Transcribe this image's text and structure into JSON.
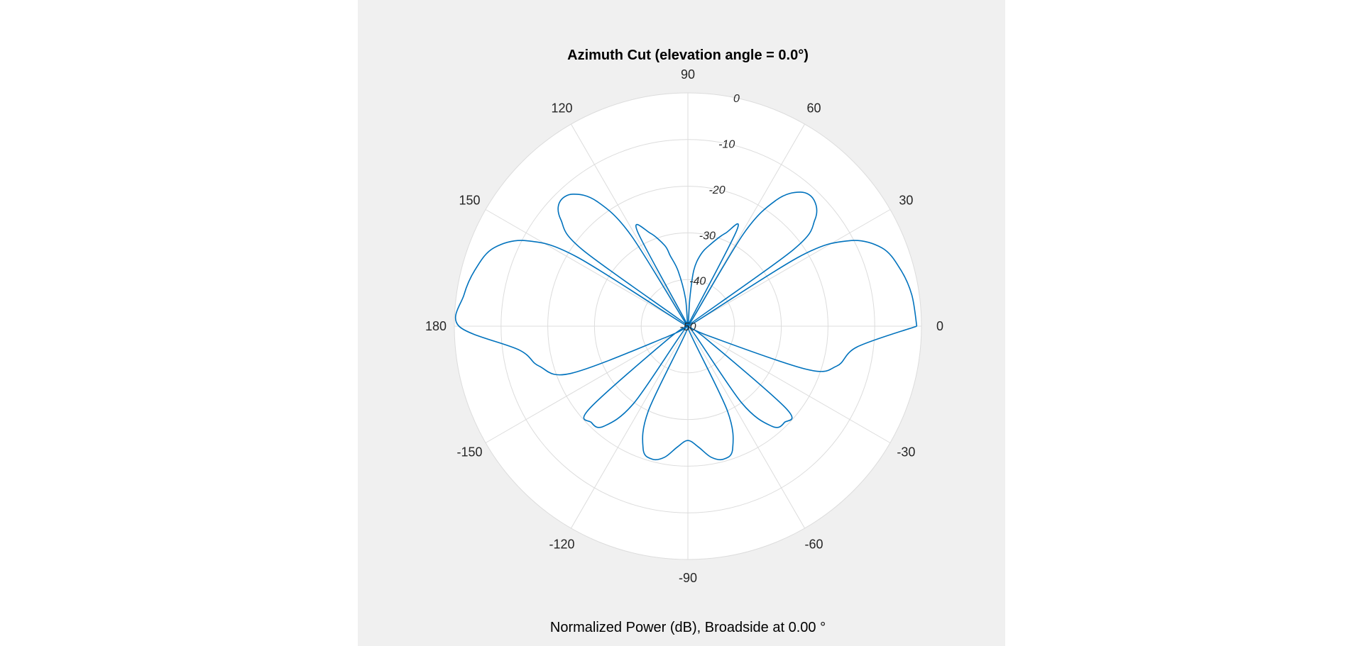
{
  "chart_data": {
    "type": "polar-line",
    "title": "Azimuth Cut (elevation angle = 0.0°)",
    "xlabel": "Normalized Power (dB), Broadside at 0.00 °",
    "theta_ticks": [
      0,
      30,
      60,
      90,
      120,
      150,
      180,
      -150,
      -120,
      -90,
      -60,
      -30
    ],
    "r_ticks": [
      0,
      -10,
      -20,
      -30,
      -40,
      -50
    ],
    "rlim": [
      -50,
      0
    ],
    "grid": true,
    "colors": {
      "line": "#0072bd",
      "grid": "#dcdcdc",
      "background": "#ffffff",
      "figure": "#f0f0f0"
    },
    "series": [
      {
        "theta_deg": [
          0,
          8,
          15,
          22,
          28,
          32,
          34,
          36,
          40,
          45,
          50,
          55,
          59,
          61,
          63,
          68,
          75,
          80,
          84,
          86,
          90,
          95,
          100,
          104,
          106,
          112,
          118,
          120,
          122,
          126,
          131,
          136,
          140,
          144,
          146,
          148,
          152,
          158,
          165,
          172,
          180,
          188,
          195,
          202,
          207,
          210,
          213,
          220,
          225,
          230,
          235,
          240,
          245,
          250,
          255,
          260,
          265,
          270,
          275,
          280,
          285,
          290,
          295,
          300,
          305,
          310,
          315,
          320,
          325,
          330,
          335,
          340,
          345,
          353,
          360
        ],
        "r_db": [
          -1.0,
          -1.6,
          -2.9,
          -5.2,
          -11.0,
          -22.0,
          -50.0,
          -22.0,
          -14.5,
          -11.8,
          -12.5,
          -17.0,
          -27.0,
          -50.0,
          -27.0,
          -28.5,
          -32.0,
          -34.5,
          -38.0,
          -44.0,
          -50.0,
          -44.0,
          -38.0,
          -34.5,
          -32.0,
          -28.5,
          -27.0,
          -50.0,
          -27.0,
          -17.0,
          -12.5,
          -11.8,
          -14.5,
          -22.0,
          -50.0,
          -22.0,
          -11.0,
          -5.2,
          -2.9,
          -1.6,
          -1.0,
          -13.5,
          -17.0,
          -23.0,
          -45.0,
          -50.0,
          -45.0,
          -22.5,
          -20.8,
          -22.0,
          -30.0,
          -50.0,
          -30.0,
          -22.0,
          -20.5,
          -21.5,
          -24.0,
          -25.5,
          -24.0,
          -21.5,
          -20.5,
          -22.0,
          -30.0,
          -50.0,
          -30.0,
          -22.0,
          -20.8,
          -22.5,
          -45.0,
          -50.0,
          -45.0,
          -23.0,
          -17.0,
          -13.5,
          -1.0
        ]
      }
    ]
  }
}
